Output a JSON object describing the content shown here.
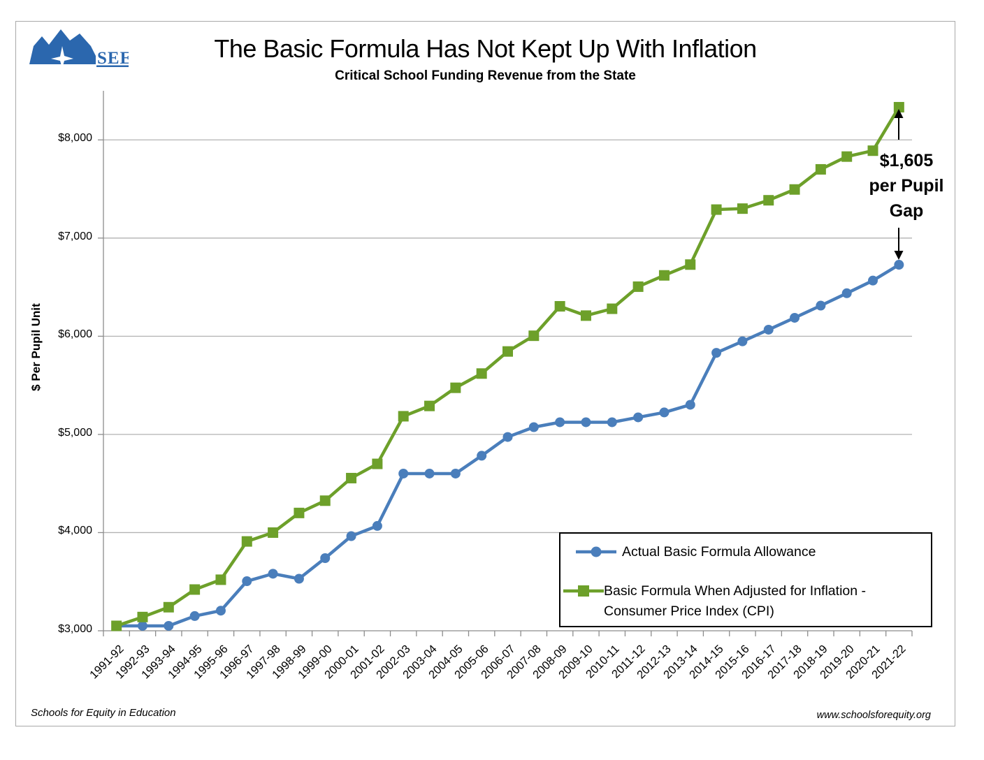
{
  "page": {
    "title": "The Basic Formula Has Not Kept Up With Inflation",
    "subtitle": "Critical School Funding Revenue from the State",
    "footer_left": "Schools for Equity in Education",
    "footer_right": "www.schoolsforequity.org",
    "logo_text": "SEE"
  },
  "annotation": {
    "line1": "$1,605",
    "line2": "per Pupil",
    "line3": "Gap"
  },
  "legend": {
    "item1_label": "Actual Basic Formula Allowance",
    "item2_line1": "Basic Formula When Adjusted for Inflation -",
    "item2_line2": "Consumer Price Index (CPI)"
  },
  "colors": {
    "actual_blue": "#4A7EBB",
    "inflation_green": "#6DA02A",
    "grid": "#b2b2b2",
    "axis": "#8c8c8c",
    "frame": "#a9a9a9",
    "logo_blue": "#2B67AE"
  },
  "chart_data": {
    "type": "line",
    "title": "The Basic Formula Has Not Kept Up With Inflation",
    "subtitle": "Critical School Funding Revenue from the State",
    "xlabel": "",
    "ylabel": "$ Per Pupil Unit",
    "ylim": [
      3000,
      8500
    ],
    "grid": true,
    "legend_position": "inside bottom-right",
    "yticks": [
      {
        "value": 3000,
        "label": "$3,000"
      },
      {
        "value": 4000,
        "label": "$4,000"
      },
      {
        "value": 5000,
        "label": "$5,000"
      },
      {
        "value": 6000,
        "label": "$6,000"
      },
      {
        "value": 7000,
        "label": "$7,000"
      },
      {
        "value": 8000,
        "label": "$8,000"
      }
    ],
    "categories": [
      "1991-92",
      "1992-93",
      "1993-94",
      "1994-95",
      "1995-96",
      "1996-97",
      "1997-98",
      "1998-99",
      "1999-00",
      "2000-01",
      "2001-02",
      "2002-03",
      "2003-04",
      "2004-05",
      "2005-06",
      "2006-07",
      "2007-08",
      "2008-09",
      "2009-10",
      "2010-11",
      "2011-12",
      "2012-13",
      "2013-14",
      "2014-15",
      "2015-16",
      "2016-17",
      "2017-18",
      "2018-19",
      "2019-20",
      "2020-21",
      "2021-22"
    ],
    "series": [
      {
        "name": "Actual Basic Formula Allowance",
        "marker": "circle",
        "color": "#4A7EBB",
        "values": [
          3050,
          3050,
          3050,
          3150,
          3205,
          3505,
          3581,
          3530,
          3740,
          3964,
          4068,
          4601,
          4601,
          4601,
          4783,
          4974,
          5074,
          5124,
          5124,
          5124,
          5174,
          5224,
          5302,
          5831,
          5948,
          6067,
          6188,
          6312,
          6438,
          6567,
          6728
        ]
      },
      {
        "name": "Basic Formula When Adjusted for Inflation - Consumer Price Index (CPI)",
        "marker": "square",
        "color": "#6DA02A",
        "values": [
          3050,
          3140,
          3240,
          3420,
          3520,
          3910,
          4000,
          4200,
          4325,
          4555,
          4700,
          5185,
          5290,
          5475,
          5620,
          5845,
          6005,
          6305,
          6210,
          6280,
          6505,
          6620,
          6730,
          7290,
          7300,
          7385,
          7495,
          7700,
          7830,
          7890,
          8333
        ]
      }
    ],
    "annotation": {
      "text": "$1,605 per Pupil Gap",
      "gap_value": 1605,
      "at_category": "2021-22"
    }
  }
}
